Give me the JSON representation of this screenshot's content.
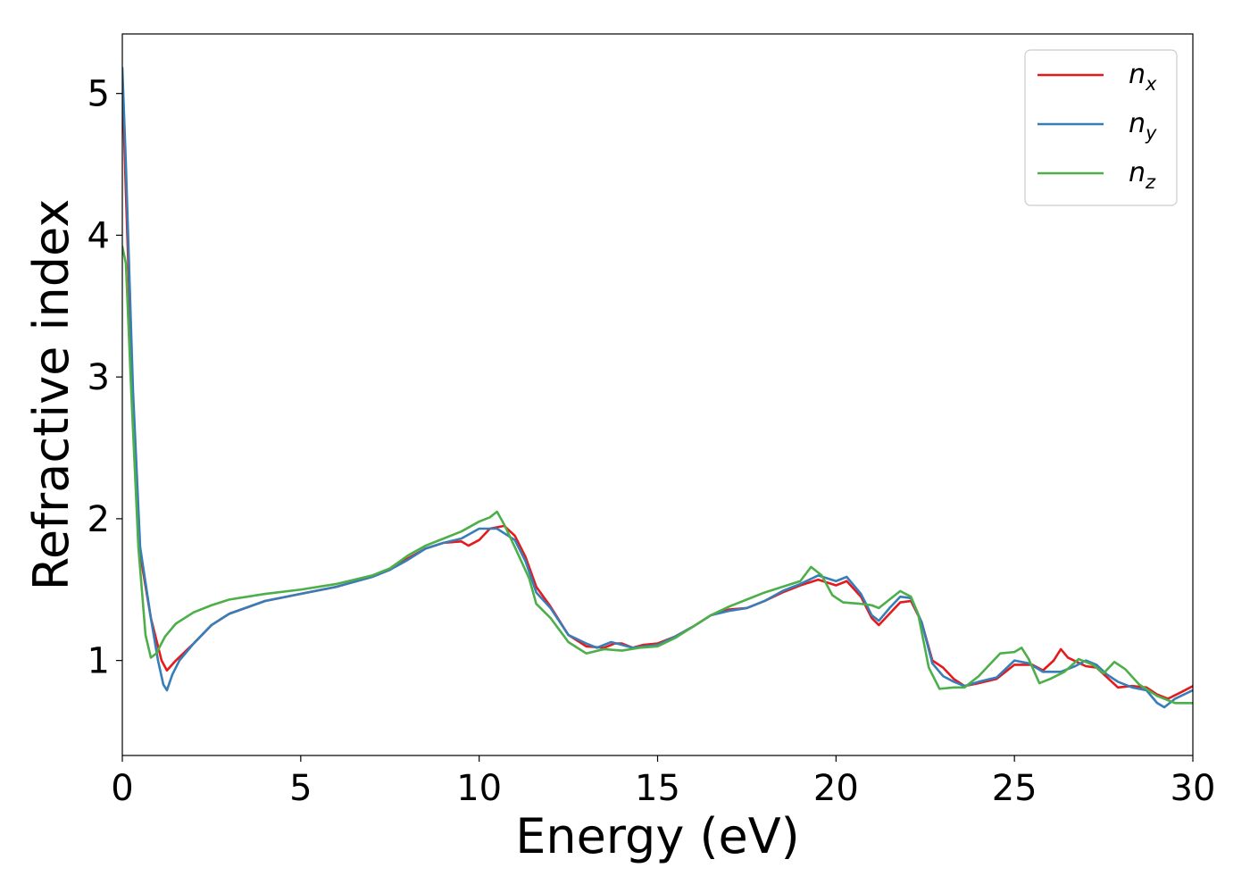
{
  "chart_data": {
    "type": "line",
    "xlabel": "Energy (eV)",
    "ylabel": "Refractive index",
    "xlim": [
      0,
      30
    ],
    "ylim": [
      0.33,
      5.42
    ],
    "xticks": [
      0,
      5,
      10,
      15,
      20,
      25,
      30
    ],
    "yticks": [
      1,
      2,
      3,
      4,
      5
    ],
    "grid": false,
    "legend_position": "top-right",
    "series": [
      {
        "name": "n_x",
        "label_base": "n",
        "label_sub": "x",
        "color": "#e41a1c",
        "points": [
          [
            0,
            5.1
          ],
          [
            0.1,
            4.3
          ],
          [
            0.3,
            2.8
          ],
          [
            0.5,
            1.75
          ],
          [
            0.8,
            1.3
          ],
          [
            1.1,
            1.0
          ],
          [
            1.25,
            0.93
          ],
          [
            1.5,
            1.0
          ],
          [
            2.0,
            1.12
          ],
          [
            2.5,
            1.25
          ],
          [
            3,
            1.33
          ],
          [
            4,
            1.42
          ],
          [
            5,
            1.47
          ],
          [
            6,
            1.52
          ],
          [
            7,
            1.59
          ],
          [
            7.5,
            1.64
          ],
          [
            8,
            1.72
          ],
          [
            8.5,
            1.79
          ],
          [
            9,
            1.83
          ],
          [
            9.5,
            1.84
          ],
          [
            9.7,
            1.81
          ],
          [
            10,
            1.85
          ],
          [
            10.3,
            1.93
          ],
          [
            10.7,
            1.95
          ],
          [
            11,
            1.88
          ],
          [
            11.3,
            1.73
          ],
          [
            11.6,
            1.52
          ],
          [
            12,
            1.38
          ],
          [
            12.5,
            1.18
          ],
          [
            13,
            1.1
          ],
          [
            13.5,
            1.09
          ],
          [
            13.8,
            1.12
          ],
          [
            14,
            1.12
          ],
          [
            14.3,
            1.09
          ],
          [
            14.6,
            1.11
          ],
          [
            15,
            1.12
          ],
          [
            15.5,
            1.17
          ],
          [
            16,
            1.24
          ],
          [
            16.5,
            1.32
          ],
          [
            17,
            1.36
          ],
          [
            17.5,
            1.37
          ],
          [
            18,
            1.42
          ],
          [
            18.5,
            1.48
          ],
          [
            19,
            1.53
          ],
          [
            19.5,
            1.57
          ],
          [
            20,
            1.53
          ],
          [
            20.3,
            1.56
          ],
          [
            20.7,
            1.45
          ],
          [
            21,
            1.3
          ],
          [
            21.2,
            1.25
          ],
          [
            21.5,
            1.33
          ],
          [
            21.8,
            1.41
          ],
          [
            22.1,
            1.42
          ],
          [
            22.4,
            1.27
          ],
          [
            22.7,
            1.0
          ],
          [
            23,
            0.95
          ],
          [
            23.3,
            0.87
          ],
          [
            23.6,
            0.82
          ],
          [
            24,
            0.84
          ],
          [
            24.5,
            0.87
          ],
          [
            25,
            0.97
          ],
          [
            25.5,
            0.97
          ],
          [
            25.8,
            0.93
          ],
          [
            26.1,
            1.0
          ],
          [
            26.3,
            1.08
          ],
          [
            26.5,
            1.02
          ],
          [
            27,
            0.96
          ],
          [
            27.3,
            0.95
          ],
          [
            27.6,
            0.88
          ],
          [
            27.9,
            0.81
          ],
          [
            28.3,
            0.82
          ],
          [
            28.7,
            0.81
          ],
          [
            29,
            0.76
          ],
          [
            29.3,
            0.73
          ],
          [
            29.7,
            0.78
          ],
          [
            30,
            0.82
          ]
        ]
      },
      {
        "name": "n_y",
        "label_base": "n",
        "label_sub": "y",
        "color": "#377eb8",
        "points": [
          [
            0,
            5.18
          ],
          [
            0.1,
            4.5
          ],
          [
            0.3,
            2.9
          ],
          [
            0.5,
            1.8
          ],
          [
            0.8,
            1.3
          ],
          [
            1.0,
            1.0
          ],
          [
            1.15,
            0.83
          ],
          [
            1.25,
            0.79
          ],
          [
            1.4,
            0.9
          ],
          [
            1.6,
            1.0
          ],
          [
            2.0,
            1.12
          ],
          [
            2.5,
            1.25
          ],
          [
            3,
            1.33
          ],
          [
            4,
            1.42
          ],
          [
            5,
            1.47
          ],
          [
            6,
            1.52
          ],
          [
            7,
            1.59
          ],
          [
            7.5,
            1.64
          ],
          [
            8,
            1.71
          ],
          [
            8.5,
            1.79
          ],
          [
            9,
            1.83
          ],
          [
            9.5,
            1.86
          ],
          [
            10,
            1.93
          ],
          [
            10.5,
            1.93
          ],
          [
            11,
            1.85
          ],
          [
            11.3,
            1.7
          ],
          [
            11.6,
            1.48
          ],
          [
            12,
            1.37
          ],
          [
            12.5,
            1.18
          ],
          [
            13,
            1.12
          ],
          [
            13.3,
            1.09
          ],
          [
            13.7,
            1.13
          ],
          [
            14,
            1.11
          ],
          [
            14.3,
            1.09
          ],
          [
            15,
            1.11
          ],
          [
            15.5,
            1.17
          ],
          [
            16,
            1.24
          ],
          [
            16.5,
            1.32
          ],
          [
            17,
            1.35
          ],
          [
            17.5,
            1.37
          ],
          [
            18,
            1.42
          ],
          [
            18.5,
            1.49
          ],
          [
            19,
            1.54
          ],
          [
            19.5,
            1.6
          ],
          [
            20,
            1.56
          ],
          [
            20.3,
            1.59
          ],
          [
            20.7,
            1.47
          ],
          [
            21,
            1.32
          ],
          [
            21.2,
            1.28
          ],
          [
            21.5,
            1.37
          ],
          [
            21.8,
            1.45
          ],
          [
            22.1,
            1.44
          ],
          [
            22.4,
            1.27
          ],
          [
            22.7,
            0.98
          ],
          [
            23,
            0.89
          ],
          [
            23.3,
            0.85
          ],
          [
            23.6,
            0.82
          ],
          [
            24,
            0.85
          ],
          [
            24.5,
            0.88
          ],
          [
            25,
            1.0
          ],
          [
            25.4,
            0.98
          ],
          [
            25.8,
            0.92
          ],
          [
            26.3,
            0.92
          ],
          [
            26.7,
            0.96
          ],
          [
            27,
            1.0
          ],
          [
            27.3,
            0.97
          ],
          [
            27.6,
            0.9
          ],
          [
            27.9,
            0.85
          ],
          [
            28.3,
            0.81
          ],
          [
            28.7,
            0.79
          ],
          [
            29,
            0.7
          ],
          [
            29.2,
            0.67
          ],
          [
            29.5,
            0.73
          ],
          [
            30,
            0.79
          ]
        ]
      },
      {
        "name": "n_z",
        "label_base": "n",
        "label_sub": "z",
        "color": "#4daf4a",
        "points": [
          [
            0,
            3.92
          ],
          [
            0.1,
            3.8
          ],
          [
            0.25,
            2.9
          ],
          [
            0.45,
            1.8
          ],
          [
            0.65,
            1.18
          ],
          [
            0.8,
            1.02
          ],
          [
            0.95,
            1.05
          ],
          [
            1.2,
            1.17
          ],
          [
            1.5,
            1.26
          ],
          [
            2.0,
            1.34
          ],
          [
            2.5,
            1.39
          ],
          [
            3,
            1.43
          ],
          [
            4,
            1.47
          ],
          [
            5,
            1.5
          ],
          [
            6,
            1.54
          ],
          [
            7,
            1.6
          ],
          [
            7.5,
            1.65
          ],
          [
            8,
            1.74
          ],
          [
            8.5,
            1.81
          ],
          [
            9,
            1.86
          ],
          [
            9.5,
            1.91
          ],
          [
            10,
            1.98
          ],
          [
            10.3,
            2.01
          ],
          [
            10.5,
            2.05
          ],
          [
            10.7,
            1.96
          ],
          [
            11,
            1.8
          ],
          [
            11.4,
            1.58
          ],
          [
            11.6,
            1.4
          ],
          [
            12,
            1.3
          ],
          [
            12.5,
            1.13
          ],
          [
            13,
            1.05
          ],
          [
            13.5,
            1.08
          ],
          [
            14,
            1.07
          ],
          [
            14.5,
            1.09
          ],
          [
            15,
            1.1
          ],
          [
            15.5,
            1.16
          ],
          [
            16,
            1.24
          ],
          [
            16.5,
            1.32
          ],
          [
            17,
            1.38
          ],
          [
            17.5,
            1.43
          ],
          [
            18,
            1.48
          ],
          [
            18.5,
            1.52
          ],
          [
            19,
            1.56
          ],
          [
            19.3,
            1.66
          ],
          [
            19.6,
            1.6
          ],
          [
            19.9,
            1.46
          ],
          [
            20.2,
            1.41
          ],
          [
            20.7,
            1.4
          ],
          [
            21,
            1.39
          ],
          [
            21.2,
            1.37
          ],
          [
            21.5,
            1.43
          ],
          [
            21.8,
            1.49
          ],
          [
            22.1,
            1.45
          ],
          [
            22.3,
            1.33
          ],
          [
            22.6,
            0.95
          ],
          [
            22.9,
            0.8
          ],
          [
            23.3,
            0.81
          ],
          [
            23.6,
            0.81
          ],
          [
            24,
            0.89
          ],
          [
            24.3,
            0.97
          ],
          [
            24.6,
            1.05
          ],
          [
            25,
            1.06
          ],
          [
            25.2,
            1.09
          ],
          [
            25.4,
            1.01
          ],
          [
            25.7,
            0.84
          ],
          [
            26,
            0.87
          ],
          [
            26.4,
            0.92
          ],
          [
            26.8,
            1.01
          ],
          [
            27.2,
            0.97
          ],
          [
            27.5,
            0.91
          ],
          [
            27.8,
            0.99
          ],
          [
            28.1,
            0.94
          ],
          [
            28.5,
            0.83
          ],
          [
            29,
            0.75
          ],
          [
            29.5,
            0.7
          ],
          [
            30,
            0.7
          ]
        ]
      }
    ]
  }
}
